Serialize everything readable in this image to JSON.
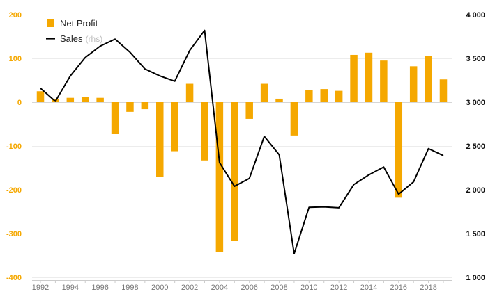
{
  "chart_data": {
    "type": "bar+line",
    "x": [
      1992,
      1993,
      1994,
      1995,
      1996,
      1997,
      1998,
      1999,
      2000,
      2001,
      2002,
      2003,
      2004,
      2005,
      2006,
      2007,
      2008,
      2009,
      2010,
      2011,
      2012,
      2013,
      2014,
      2015,
      2016,
      2017,
      2018,
      2019
    ],
    "xticks": [
      "1992",
      "1994",
      "1996",
      "1998",
      "2000",
      "2002",
      "2004",
      "2006",
      "2008",
      "2010",
      "2012",
      "2014",
      "2016",
      "2018"
    ],
    "left_axis": {
      "ylim": [
        -400,
        200
      ],
      "ticks": [
        "200",
        "100",
        "0",
        "-100",
        "-200",
        "-300",
        "-400"
      ],
      "values": [
        200,
        100,
        0,
        -100,
        -200,
        -300,
        -400
      ]
    },
    "right_axis": {
      "ylim": [
        1000,
        4000
      ],
      "ticks": [
        "4 000",
        "3 500",
        "3 000",
        "2 500",
        "2 000",
        "1 500",
        "1 000"
      ],
      "values": [
        4000,
        3500,
        3000,
        2500,
        2000,
        1500,
        1000
      ]
    },
    "series": [
      {
        "name": "Net Profit",
        "type": "bar",
        "axis": "left",
        "color": "#f5a800",
        "values": [
          25,
          7,
          10,
          12,
          10,
          -73,
          -22,
          -16,
          -170,
          -112,
          42,
          -133,
          -342,
          -316,
          -38,
          42,
          8,
          -76,
          28,
          30,
          26,
          108,
          113,
          95,
          -218,
          82,
          105,
          52
        ]
      },
      {
        "name": "Sales",
        "type": "line",
        "axis": "right",
        "color": "#000000",
        "values": [
          3160,
          3010,
          3300,
          3510,
          3640,
          3720,
          3570,
          3380,
          3300,
          3240,
          3590,
          3820,
          2310,
          2040,
          2130,
          2610,
          2400,
          1270,
          1800,
          1805,
          1795,
          2060,
          2170,
          2260,
          1950,
          2090,
          2470,
          2390
        ]
      }
    ],
    "legend": {
      "placement": "top-left",
      "items": [
        {
          "label": "Net Profit",
          "suffix": ""
        },
        {
          "label": "Sales",
          "suffix": "(rhs)"
        }
      ]
    },
    "grid": true
  }
}
